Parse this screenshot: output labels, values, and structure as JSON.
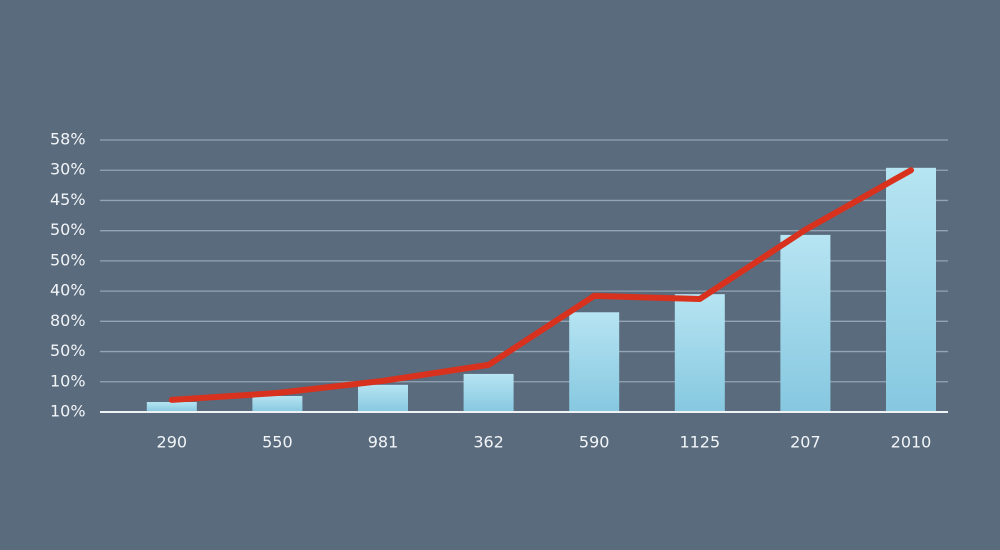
{
  "chart_data": {
    "type": "bar",
    "categories": [
      "290",
      "550",
      "981",
      "362",
      "590",
      "1125",
      "207",
      "2010"
    ],
    "values": [
      0.33,
      0.53,
      0.9,
      1.26,
      3.3,
      3.9,
      5.86,
      8.08
    ],
    "color": "#a6dbec",
    "line": {
      "type": "line",
      "color": "#d8311e",
      "values": [
        0.4,
        0.63,
        1.03,
        1.56,
        3.84,
        3.74,
        6.03,
        8.0
      ]
    },
    "ylim": [
      0,
      9
    ],
    "yticks": [
      {
        "value": 0,
        "label": "10%"
      },
      {
        "value": 1,
        "label": "10%"
      },
      {
        "value": 2,
        "label": "50%"
      },
      {
        "value": 3,
        "label": "80%"
      },
      {
        "value": 4,
        "label": "40%"
      },
      {
        "value": 5,
        "label": "50%"
      },
      {
        "value": 6,
        "label": "50%"
      },
      {
        "value": 7,
        "label": "45%"
      },
      {
        "value": 8,
        "label": "30%"
      },
      {
        "value": 9,
        "label": "58%"
      }
    ],
    "grid": true
  }
}
